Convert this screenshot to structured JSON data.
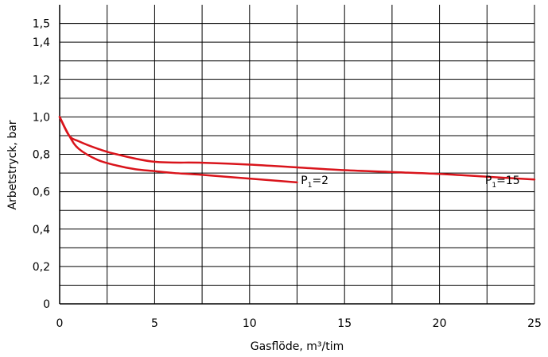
{
  "chart_data": {
    "type": "line",
    "title": "",
    "xlabel": "Gasflöde, m³/tim",
    "ylabel": "Arbetstryck, bar",
    "xlim": [
      0,
      25
    ],
    "ylim": [
      0,
      1.6
    ],
    "grid": true,
    "x_ticks": [
      {
        "value": 0,
        "label": "0"
      },
      {
        "value": 5,
        "label": "5"
      },
      {
        "value": 10,
        "label": "10"
      },
      {
        "value": 15,
        "label": "15"
      },
      {
        "value": 20,
        "label": "20"
      },
      {
        "value": 25,
        "label": "25"
      }
    ],
    "y_ticks": [
      {
        "value": 0,
        "label": "0"
      },
      {
        "value": 0.2,
        "label": "0,2"
      },
      {
        "value": 0.4,
        "label": "0,4"
      },
      {
        "value": 0.6,
        "label": "0,6"
      },
      {
        "value": 0.8,
        "label": "0,8"
      },
      {
        "value": 1.0,
        "label": "1,0"
      },
      {
        "value": 1.2,
        "label": "1,2"
      },
      {
        "value": 1.4,
        "label": "1,4"
      },
      {
        "value": 1.5,
        "label": "1,5"
      }
    ],
    "series": [
      {
        "color": "#d9141b",
        "x": [
          0,
          0.5,
          1,
          2,
          3,
          4,
          5,
          6,
          7.5,
          10,
          12.5
        ],
        "y": [
          1.0,
          0.9,
          0.83,
          0.77,
          0.74,
          0.72,
          0.71,
          0.7,
          0.69,
          0.67,
          0.65
        ]
      },
      {
        "color": "#d9141b",
        "x": [
          0,
          0.5,
          1,
          2,
          3,
          5,
          7.5,
          10,
          12.5,
          15,
          17.5,
          20,
          22.5,
          25
        ],
        "y": [
          1.0,
          0.9,
          0.87,
          0.83,
          0.8,
          0.76,
          0.755,
          0.745,
          0.73,
          0.715,
          0.705,
          0.695,
          0.68,
          0.665
        ]
      }
    ],
    "annotations": [
      {
        "main": "P",
        "sub": "1",
        "suffix": "=2",
        "x": 12.7,
        "y": 0.64
      },
      {
        "main": "P",
        "sub": "1",
        "suffix": "=15",
        "x": 22.4,
        "y": 0.64
      }
    ]
  }
}
